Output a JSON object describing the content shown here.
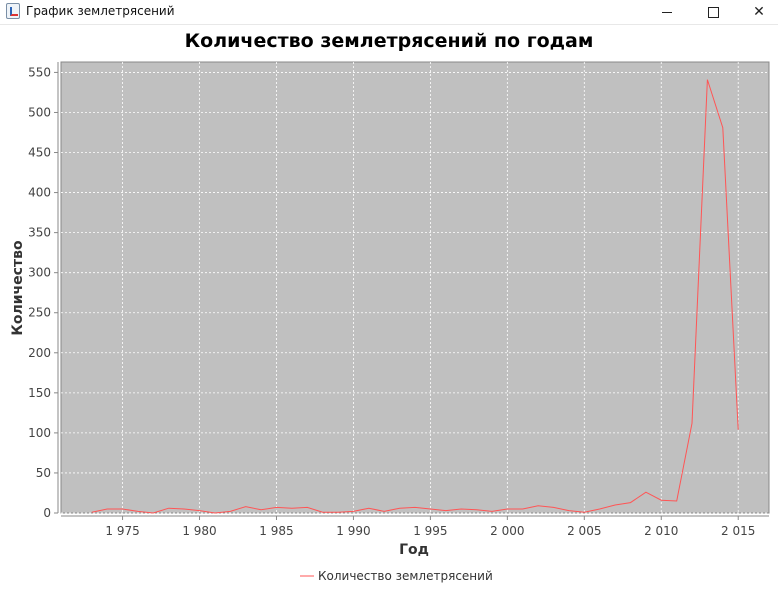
{
  "window": {
    "title": "График землетрясений",
    "icon": "java-app-icon"
  },
  "colors": {
    "plot_background": "#c0c0c0",
    "series": "#ff5555",
    "grid": "#ffffff"
  },
  "chart_data": {
    "type": "line",
    "title": "Количество землетрясений по годам",
    "xlabel": "Год",
    "ylabel": "Количество",
    "xlim": [
      1971,
      2017
    ],
    "ylim": [
      0,
      563
    ],
    "x_ticks": [
      1975,
      1980,
      1985,
      1990,
      1995,
      2000,
      2005,
      2010,
      2015
    ],
    "x_tick_labels": [
      "1 975",
      "1 980",
      "1 985",
      "1 990",
      "1 995",
      "2 000",
      "2 005",
      "2 010",
      "2 015"
    ],
    "y_ticks": [
      0,
      50,
      100,
      150,
      200,
      250,
      300,
      350,
      400,
      450,
      500,
      550
    ],
    "y_tick_labels": [
      "0",
      "50",
      "100",
      "150",
      "200",
      "250",
      "300",
      "350",
      "400",
      "450",
      "500",
      "550"
    ],
    "grid": true,
    "legend_position": "bottom",
    "series": [
      {
        "name": "Количество землетрясений",
        "x": [
          1973,
          1974,
          1975,
          1976,
          1977,
          1978,
          1979,
          1980,
          1981,
          1982,
          1983,
          1984,
          1985,
          1986,
          1987,
          1988,
          1989,
          1990,
          1991,
          1992,
          1993,
          1994,
          1995,
          1996,
          1997,
          1998,
          1999,
          2000,
          2001,
          2002,
          2003,
          2004,
          2005,
          2006,
          2007,
          2008,
          2009,
          2010,
          2011,
          2012,
          2013,
          2014,
          2015
        ],
        "y": [
          1,
          5,
          5,
          2,
          0,
          6,
          5,
          3,
          0,
          2,
          8,
          4,
          7,
          6,
          7,
          1,
          1,
          2,
          6,
          2,
          6,
          7,
          5,
          3,
          5,
          4,
          2,
          5,
          5,
          9,
          7,
          3,
          1,
          5,
          10,
          13,
          26,
          16,
          15,
          112,
          541,
          481,
          104
        ]
      }
    ]
  }
}
